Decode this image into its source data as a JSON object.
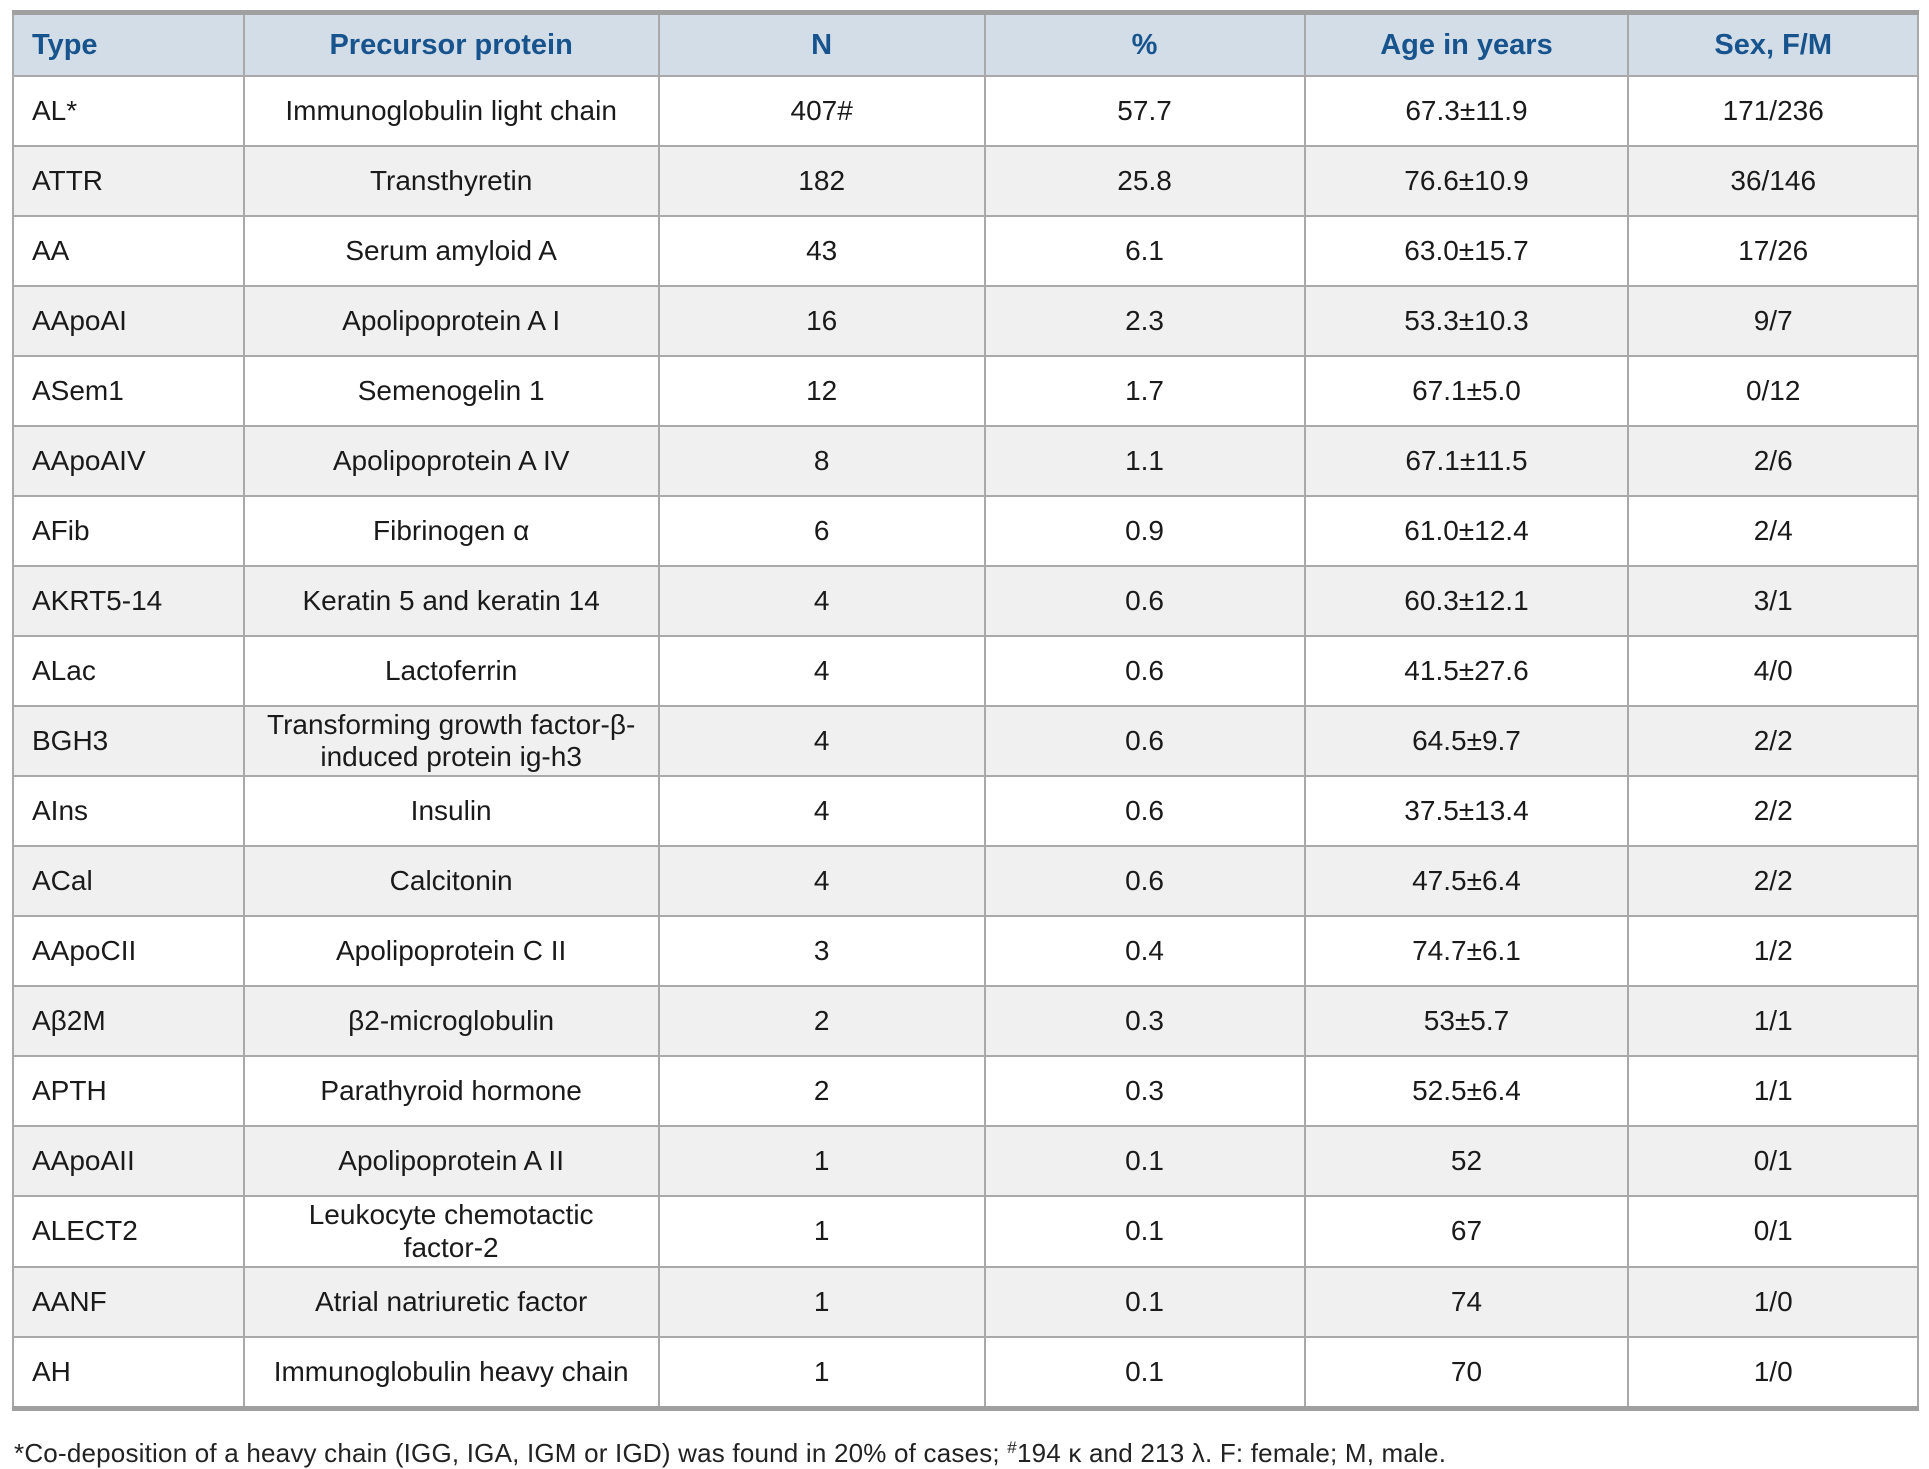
{
  "colors": {
    "header_background": "#d3dde7",
    "header_text": "#17538d",
    "row_alt_background": "#f0f0f0",
    "row_background": "#ffffff",
    "border": "#a9a9a9",
    "outer_border": "#a0a0a0",
    "body_text": "#1a1a1a"
  },
  "table": {
    "headers": [
      {
        "key": "type",
        "label": "Type"
      },
      {
        "key": "precursor",
        "label": "Precursor protein"
      },
      {
        "key": "n",
        "label": "N"
      },
      {
        "key": "pct",
        "label": "%"
      },
      {
        "key": "age",
        "label": "Age in years"
      },
      {
        "key": "sex",
        "label": "Sex, F/M"
      }
    ],
    "rows": [
      {
        "type": "AL*",
        "precursor": "Immunoglobulin light chain",
        "n": "407#",
        "pct": "57.7",
        "age": "67.3±11.9",
        "sex": "171/236"
      },
      {
        "type": "ATTR",
        "precursor": "Transthyretin",
        "n": "182",
        "pct": "25.8",
        "age": "76.6±10.9",
        "sex": "36/146"
      },
      {
        "type": "AA",
        "precursor": "Serum amyloid A",
        "n": "43",
        "pct": "6.1",
        "age": "63.0±15.7",
        "sex": "17/26"
      },
      {
        "type": "AApoAI",
        "precursor": "Apolipoprotein A I",
        "n": "16",
        "pct": "2.3",
        "age": "53.3±10.3",
        "sex": "9/7"
      },
      {
        "type": "ASem1",
        "precursor": "Semenogelin 1",
        "n": "12",
        "pct": "1.7",
        "age": "67.1±5.0",
        "sex": "0/12"
      },
      {
        "type": "AApoAIV",
        "precursor": "Apolipoprotein A IV",
        "n": "8",
        "pct": "1.1",
        "age": "67.1±11.5",
        "sex": "2/6"
      },
      {
        "type": "AFib",
        "precursor": "Fibrinogen α",
        "n": "6",
        "pct": "0.9",
        "age": "61.0±12.4",
        "sex": "2/4"
      },
      {
        "type": "AKRT5-14",
        "precursor": "Keratin 5 and keratin 14",
        "n": "4",
        "pct": "0.6",
        "age": "60.3±12.1",
        "sex": "3/1"
      },
      {
        "type": "ALac",
        "precursor": "Lactoferrin",
        "n": "4",
        "pct": "0.6",
        "age": "41.5±27.6",
        "sex": "4/0"
      },
      {
        "type": "BGH3",
        "precursor": "Transforming growth factor-β-\ninduced protein ig-h3",
        "n": "4",
        "pct": "0.6",
        "age": "64.5±9.7",
        "sex": "2/2"
      },
      {
        "type": "AIns",
        "precursor": "Insulin",
        "n": "4",
        "pct": "0.6",
        "age": "37.5±13.4",
        "sex": "2/2"
      },
      {
        "type": "ACal",
        "precursor": "Calcitonin",
        "n": "4",
        "pct": "0.6",
        "age": "47.5±6.4",
        "sex": "2/2"
      },
      {
        "type": "AApoCII",
        "precursor": "Apolipoprotein C II",
        "n": "3",
        "pct": "0.4",
        "age": "74.7±6.1",
        "sex": "1/2"
      },
      {
        "type": "Aβ2M",
        "precursor": "β2-microglobulin",
        "n": "2",
        "pct": "0.3",
        "age": "53±5.7",
        "sex": "1/1"
      },
      {
        "type": "APTH",
        "precursor": "Parathyroid hormone",
        "n": "2",
        "pct": "0.3",
        "age": "52.5±6.4",
        "sex": "1/1"
      },
      {
        "type": "AApoAII",
        "precursor": "Apolipoprotein A II",
        "n": "1",
        "pct": "0.1",
        "age": "52",
        "sex": "0/1"
      },
      {
        "type": "ALECT2",
        "precursor": "Leukocyte chemotactic\nfactor-2",
        "n": "1",
        "pct": "0.1",
        "age": "67",
        "sex": "0/1"
      },
      {
        "type": "AANF",
        "precursor": "Atrial natriuretic factor",
        "n": "1",
        "pct": "0.1",
        "age": "74",
        "sex": "1/0"
      },
      {
        "type": "AH",
        "precursor": "Immunoglobulin heavy chain",
        "n": "1",
        "pct": "0.1",
        "age": "70",
        "sex": "1/0"
      }
    ]
  },
  "footnote": {
    "before_hash": "*Co-deposition of a heavy chain (IGG, IGA, IGM or IGD) was found in 20% of cases; ",
    "hash": "#",
    "after_hash": "194 κ and 213 λ. F: female; M, male."
  }
}
